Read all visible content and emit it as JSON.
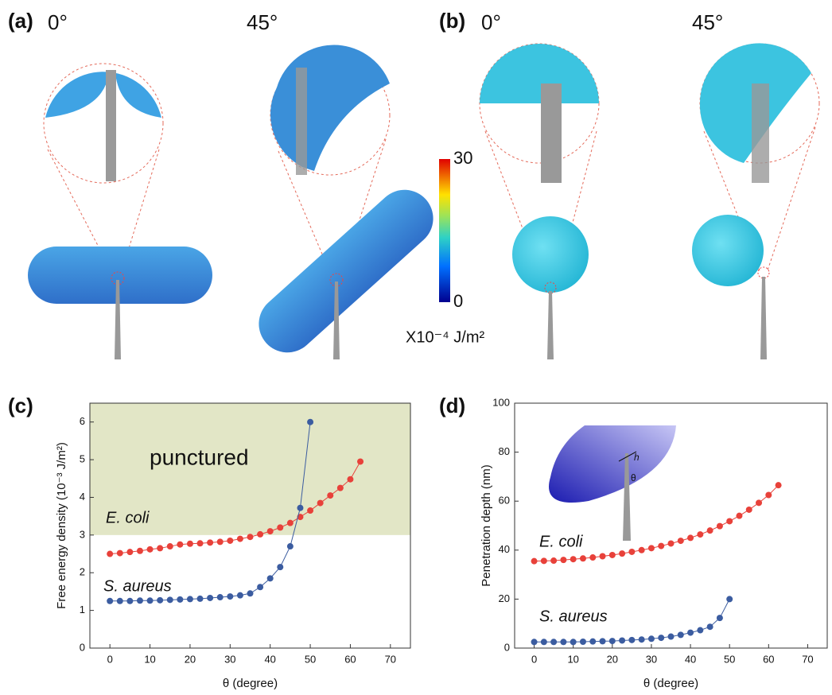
{
  "panels": [
    {
      "label": "(a)",
      "angles": [
        "0°",
        "45°"
      ]
    },
    {
      "label": "(b)",
      "angles": [
        "0°",
        "45°"
      ]
    }
  ],
  "colorbar": {
    "ticks": [
      0,
      30
    ],
    "unit": "X10⁻⁴ J/m²"
  },
  "chart_data": [
    {
      "type": "line",
      "panel_label": "(c)",
      "x_label": "θ (degree)",
      "y_label": "Free energy density (10⁻³ J/m²)",
      "xlim": [
        -5,
        75
      ],
      "xticks": [
        0,
        10,
        20,
        30,
        40,
        50,
        60,
        70
      ],
      "ylim": [
        0,
        6.5
      ],
      "yticks": [
        0,
        1,
        2,
        3,
        4,
        5,
        6
      ],
      "shaded_from": 3,
      "shaded_color": "#e2e6c6",
      "shaded_label": "punctured",
      "series": [
        {
          "name": "E. coli",
          "color": "#e8413a",
          "x": [
            0,
            2.5,
            5,
            7.5,
            10,
            12.5,
            15,
            17.5,
            20,
            22.5,
            25,
            27.5,
            30,
            32.5,
            35,
            37.5,
            40,
            42.5,
            45,
            47.5,
            50,
            52.5,
            55,
            57.5,
            60,
            62.5
          ],
          "values": [
            2.5,
            2.52,
            2.55,
            2.58,
            2.62,
            2.65,
            2.7,
            2.75,
            2.77,
            2.78,
            2.8,
            2.82,
            2.85,
            2.9,
            2.95,
            3.02,
            3.1,
            3.2,
            3.32,
            3.48,
            3.65,
            3.85,
            4.05,
            4.25,
            4.48,
            4.95
          ]
        },
        {
          "name": "S. aureus",
          "color": "#3b5ca0",
          "x": [
            0,
            2.5,
            5,
            7.5,
            10,
            12.5,
            15,
            17.5,
            20,
            22.5,
            25,
            27.5,
            30,
            32.5,
            35,
            37.5,
            40,
            42.5,
            45,
            47.5,
            50
          ],
          "values": [
            1.25,
            1.25,
            1.25,
            1.26,
            1.26,
            1.27,
            1.28,
            1.29,
            1.3,
            1.31,
            1.33,
            1.35,
            1.37,
            1.4,
            1.45,
            1.62,
            1.85,
            2.15,
            2.7,
            3.72,
            6.0
          ]
        }
      ]
    },
    {
      "type": "line",
      "panel_label": "(d)",
      "x_label": "θ (degree)",
      "y_label": "Penetration depth (nm)",
      "xlim": [
        -5,
        75
      ],
      "xticks": [
        0,
        10,
        20,
        30,
        40,
        50,
        60,
        70
      ],
      "ylim": [
        0,
        100
      ],
      "yticks": [
        0,
        20,
        40,
        60,
        80,
        100
      ],
      "inset_labels": [
        "h",
        "θ"
      ],
      "series": [
        {
          "name": "E. coli",
          "color": "#e8413a",
          "x": [
            0,
            2.5,
            5,
            7.5,
            10,
            12.5,
            15,
            17.5,
            20,
            22.5,
            25,
            27.5,
            30,
            32.5,
            35,
            37.5,
            40,
            42.5,
            45,
            47.5,
            50,
            52.5,
            55,
            57.5,
            60,
            62.5
          ],
          "values": [
            35.5,
            35.6,
            35.7,
            36,
            36.3,
            36.6,
            37,
            37.5,
            38,
            38.6,
            39.3,
            40,
            40.8,
            41.7,
            42.7,
            43.8,
            45,
            46.4,
            48,
            49.8,
            51.8,
            54,
            56.5,
            59.3,
            62.5,
            66.5
          ]
        },
        {
          "name": "S. aureus",
          "color": "#3b5ca0",
          "x": [
            0,
            2.5,
            5,
            7.5,
            10,
            12.5,
            15,
            17.5,
            20,
            22.5,
            25,
            27.5,
            30,
            32.5,
            35,
            37.5,
            40,
            42.5,
            45,
            47.5,
            50
          ],
          "values": [
            2.5,
            2.5,
            2.5,
            2.5,
            2.5,
            2.6,
            2.7,
            2.8,
            2.9,
            3.1,
            3.3,
            3.5,
            3.8,
            4.2,
            4.7,
            5.4,
            6.3,
            7.3,
            8.7,
            12.3,
            20
          ]
        }
      ]
    }
  ]
}
